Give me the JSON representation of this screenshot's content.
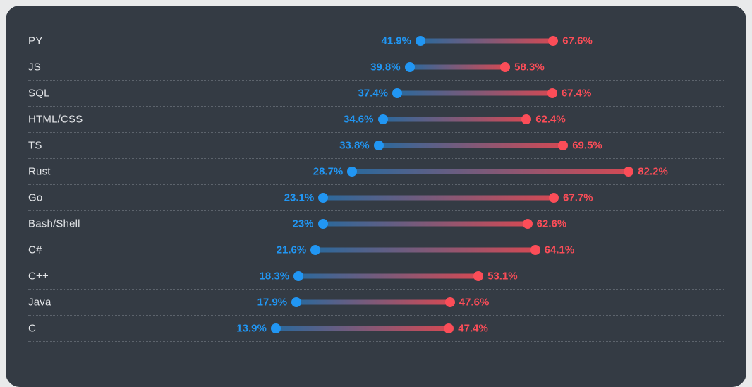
{
  "colors": {
    "page_background": "#e9eaeb",
    "card_background": "#343b44",
    "label_text": "#e3e5e8",
    "grid_dotted": "#5d646d",
    "start_accent": "#2196f3",
    "end_accent": "#fb4d58"
  },
  "chart_data": {
    "type": "dumbbell",
    "title": "",
    "xlabel": "",
    "ylabel": "",
    "xlim": [
      0,
      100
    ],
    "grid": "dotted-row-separators",
    "legend": "none",
    "categories": [
      "PY",
      "JS",
      "SQL",
      "HTML/CSS",
      "TS",
      "Rust",
      "Go",
      "Bash/Shell",
      "C#",
      "C++",
      "Java",
      "C"
    ],
    "series": [
      {
        "name": "start",
        "color": "#2196f3",
        "values": [
          41.9,
          39.8,
          37.4,
          34.6,
          33.8,
          28.7,
          23.1,
          23,
          21.6,
          18.3,
          17.9,
          13.9
        ]
      },
      {
        "name": "end",
        "color": "#fb4d58",
        "values": [
          67.6,
          58.3,
          67.4,
          62.4,
          69.5,
          82.2,
          67.7,
          62.6,
          64.1,
          53.1,
          47.6,
          47.4
        ]
      }
    ],
    "labels_start": [
      "41.9%",
      "39.8%",
      "37.4%",
      "34.6%",
      "33.8%",
      "28.7%",
      "23.1%",
      "23%",
      "21.6%",
      "18.3%",
      "17.9%",
      "13.9%"
    ],
    "labels_end": [
      "67.6%",
      "58.3%",
      "67.4%",
      "62.4%",
      "69.5%",
      "82.2%",
      "67.7%",
      "62.6%",
      "64.1%",
      "53.1%",
      "47.6%",
      "47.4%"
    ]
  }
}
